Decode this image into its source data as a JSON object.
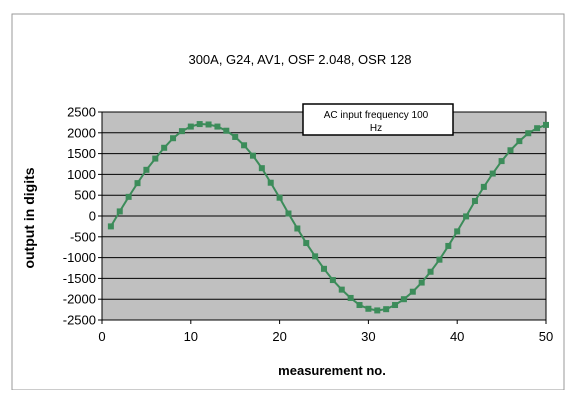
{
  "chart_data": {
    "type": "line",
    "title": "300A, G24, AV1, OSF 2.048, OSR 128",
    "xlabel": "measurement no.",
    "ylabel": "output in digits",
    "xlim": [
      0,
      50
    ],
    "ylim": [
      -2500,
      2500
    ],
    "xticks": [
      0,
      10,
      20,
      30,
      40,
      50
    ],
    "yticks": [
      2500,
      2000,
      1500,
      1000,
      500,
      0,
      -500,
      -1000,
      -1500,
      -2000,
      -2500
    ],
    "grid": "horizontal",
    "annotation": "AC input frequency 100 Hz",
    "colors": {
      "series": "#3c8c5a",
      "plot_bg": "#c0c0c0",
      "border": "#000000",
      "frame": "#999999"
    },
    "series": [
      {
        "x": [
          1,
          2,
          3,
          4,
          5,
          6,
          7,
          8,
          9,
          10,
          11,
          12,
          13,
          14,
          15,
          16,
          17,
          18,
          19,
          20,
          21,
          22,
          23,
          24,
          25,
          26,
          27,
          28,
          29,
          30,
          31,
          32,
          33,
          34,
          35,
          36,
          37,
          38,
          39,
          40,
          41,
          42,
          43,
          44,
          45,
          46,
          47,
          48,
          49,
          50
        ],
        "values": [
          -250,
          110,
          460,
          790,
          1110,
          1380,
          1640,
          1870,
          2040,
          2150,
          2210,
          2200,
          2150,
          2050,
          1900,
          1700,
          1450,
          1150,
          800,
          440,
          60,
          -300,
          -650,
          -970,
          -1270,
          -1540,
          -1770,
          -1970,
          -2140,
          -2230,
          -2270,
          -2240,
          -2140,
          -2000,
          -1820,
          -1600,
          -1340,
          -1050,
          -720,
          -370,
          -10,
          360,
          700,
          1020,
          1320,
          1580,
          1800,
          1990,
          2110,
          2190
        ]
      }
    ]
  }
}
